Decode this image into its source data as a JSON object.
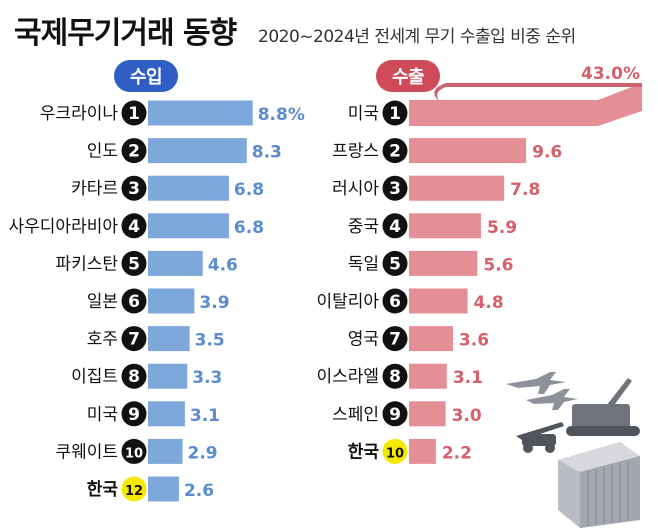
{
  "title": "국제무기거래 동향",
  "subtitle": "2020~2024년 전세계 무기 수출입 비중 순위",
  "colors": {
    "import_bar": "#7ea7db",
    "import_text": "#5b8bd0",
    "export_bar": "#e48e95",
    "export_text": "#d65f6a",
    "rank_badge": "#111111",
    "korea_badge": "#f4e900",
    "import_pill": "#2f5ec4",
    "export_pill": "#cf4a59"
  },
  "chart_data": [
    {
      "type": "bar",
      "orientation": "horizontal",
      "title": "수입",
      "categories": [
        "우크라이나",
        "인도",
        "카타르",
        "사우디아라비아",
        "파키스탄",
        "일본",
        "호주",
        "이집트",
        "미국",
        "쿠웨이트",
        "한국"
      ],
      "ranks": [
        "1",
        "2",
        "3",
        "4",
        "5",
        "6",
        "7",
        "8",
        "9",
        "10",
        "12"
      ],
      "values": [
        8.8,
        8.3,
        6.8,
        6.8,
        4.6,
        3.9,
        3.5,
        3.3,
        3.1,
        2.9,
        2.6
      ],
      "labels": [
        "8.8%",
        "8.3",
        "6.8",
        "6.8",
        "4.6",
        "3.9",
        "3.5",
        "3.3",
        "3.1",
        "2.9",
        "2.6"
      ],
      "highlight": "한국"
    },
    {
      "type": "bar",
      "orientation": "horizontal",
      "title": "수출",
      "categories": [
        "미국",
        "프랑스",
        "러시아",
        "중국",
        "독일",
        "이탈리아",
        "영국",
        "이스라엘",
        "스페인",
        "한국"
      ],
      "ranks": [
        "1",
        "2",
        "3",
        "4",
        "5",
        "6",
        "7",
        "8",
        "9",
        "10"
      ],
      "values": [
        43.0,
        9.6,
        7.8,
        5.9,
        5.6,
        4.8,
        3.6,
        3.1,
        3.0,
        2.2
      ],
      "labels": [
        "43.0%",
        "9.6",
        "7.8",
        "5.9",
        "5.6",
        "4.8",
        "3.6",
        "3.1",
        "3.0",
        "2.2"
      ],
      "highlight": "한국",
      "truncated_first_bar": true
    }
  ],
  "decorations": [
    "fighter-jets-icon",
    "howitzer-icon",
    "artillery-icon",
    "shipping-container-icon"
  ]
}
